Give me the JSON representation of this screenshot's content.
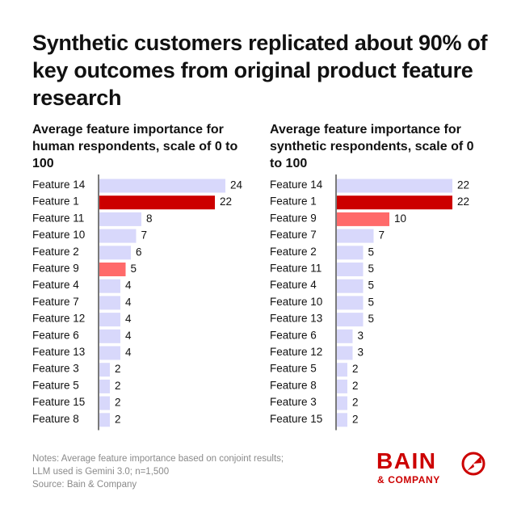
{
  "title": "Synthetic customers replicated about 90% of key outcomes from original product feature research",
  "colors": {
    "highlight_dark": "#cc0000",
    "highlight_light": "#ff6a6a",
    "bar_default": "#d8d8fb",
    "axis": "#222222",
    "brand": "#cc0000"
  },
  "chart_data": [
    {
      "type": "bar",
      "orientation": "horizontal",
      "title": "Average feature importance for human respondents, scale of 0 to 100",
      "categories": [
        "Feature 14",
        "Feature 1",
        "Feature 11",
        "Feature 10",
        "Feature 2",
        "Feature 9",
        "Feature 4",
        "Feature 7",
        "Feature 12",
        "Feature 6",
        "Feature 13",
        "Feature 3",
        "Feature 5",
        "Feature 15",
        "Feature 8"
      ],
      "values": [
        24,
        22,
        8,
        7,
        6,
        5,
        4,
        4,
        4,
        4,
        4,
        2,
        2,
        2,
        2
      ],
      "highlight": {
        "Feature 1": "highlight_dark",
        "Feature 9": "highlight_light"
      },
      "data_labels": true,
      "grid": false,
      "legend": "none"
    },
    {
      "type": "bar",
      "orientation": "horizontal",
      "title": "Average feature importance for synthetic respondents, scale of 0 to 100",
      "categories": [
        "Feature 14",
        "Feature 1",
        "Feature 9",
        "Feature 7",
        "Feature 2",
        "Feature 11",
        "Feature 4",
        "Feature 10",
        "Feature 13",
        "Feature 6",
        "Feature 12",
        "Feature 5",
        "Feature 8",
        "Feature 3",
        "Feature 15"
      ],
      "values": [
        22,
        22,
        10,
        7,
        5,
        5,
        5,
        5,
        5,
        3,
        3,
        2,
        2,
        2,
        2
      ],
      "highlight": {
        "Feature 1": "highlight_dark",
        "Feature 9": "highlight_light"
      },
      "data_labels": true,
      "grid": false,
      "legend": "none"
    }
  ],
  "notes": [
    "Notes: Average feature importance based on conjoint results;",
    "LLM used is Gemini 3.0; n=1,500",
    "Source: Bain & Company"
  ],
  "logo": {
    "word": "BAIN",
    "sub": "& COMPANY",
    "mark": "bain-circle-mark"
  }
}
